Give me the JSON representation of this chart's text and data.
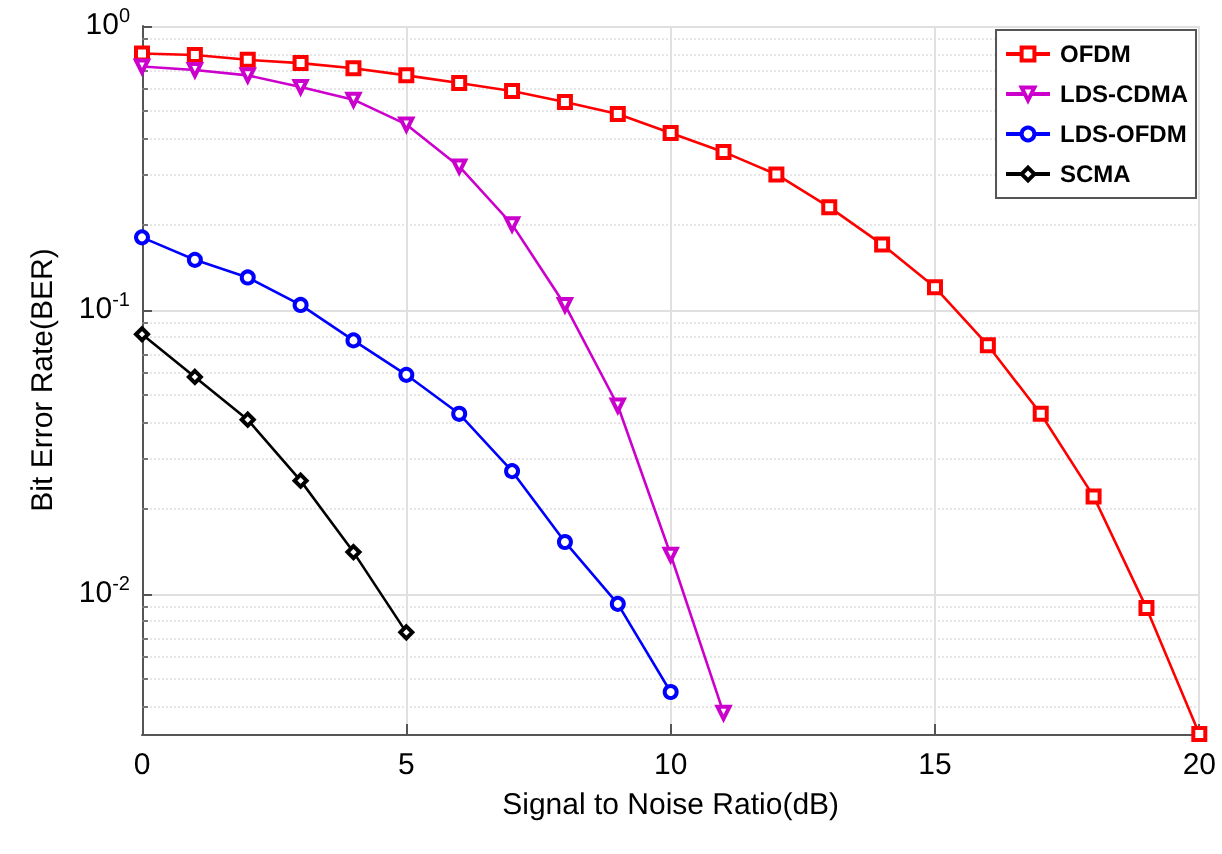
{
  "chart_data": {
    "type": "line",
    "xlabel": "Signal to Noise Ratio(dB)",
    "ylabel": "Bit Error Rate(BER)",
    "log": "y",
    "grid": true,
    "legend": "top right",
    "line_style": "solid",
    "xlim": [
      0,
      20
    ],
    "xticks": [
      0,
      5,
      10,
      15,
      20
    ],
    "ylim": [
      0.0032,
      1
    ],
    "yticks": [
      {
        "value": 1,
        "label": "10$^{0}$"
      },
      {
        "value": 0.1,
        "label": "10$^{-1}$"
      },
      {
        "value": 0.01,
        "label": "10$^{-2}$"
      }
    ],
    "series": [
      {
        "name": "OFDM",
        "color": "#ff0000",
        "marker": "square",
        "x": [
          0,
          1,
          2,
          3,
          4,
          5,
          6,
          7,
          8,
          9,
          10,
          11,
          12,
          13,
          14,
          15,
          16,
          17,
          18,
          19,
          20
        ],
        "values": [
          0.8,
          0.79,
          0.76,
          0.74,
          0.71,
          0.67,
          0.63,
          0.59,
          0.54,
          0.49,
          0.42,
          0.36,
          0.3,
          0.23,
          0.17,
          0.12,
          0.075,
          0.043,
          0.022,
          0.0089,
          0.0032
        ]
      },
      {
        "name": "LDS-CDMA",
        "color": "#cc00cc",
        "marker": "triangle",
        "x": [
          0,
          1,
          2,
          3,
          4,
          5,
          6,
          7,
          8,
          9,
          10,
          11
        ],
        "values": [
          0.72,
          0.7,
          0.67,
          0.61,
          0.55,
          0.45,
          0.32,
          0.2,
          0.104,
          0.046,
          0.0137,
          0.0038
        ]
      },
      {
        "name": "LDS-OFDM",
        "color": "#0000ff",
        "marker": "circle",
        "x": [
          0,
          1,
          2,
          3,
          4,
          5,
          6,
          7,
          8,
          9,
          10
        ],
        "values": [
          0.18,
          0.15,
          0.13,
          0.104,
          0.078,
          0.059,
          0.043,
          0.027,
          0.0152,
          0.0092,
          0.0045
        ]
      },
      {
        "name": "SCMA",
        "color": "#000000",
        "marker": "diamond",
        "x": [
          0,
          1,
          2,
          3,
          4,
          5
        ],
        "values": [
          0.082,
          0.058,
          0.041,
          0.025,
          0.014,
          0.0073
        ]
      }
    ]
  }
}
